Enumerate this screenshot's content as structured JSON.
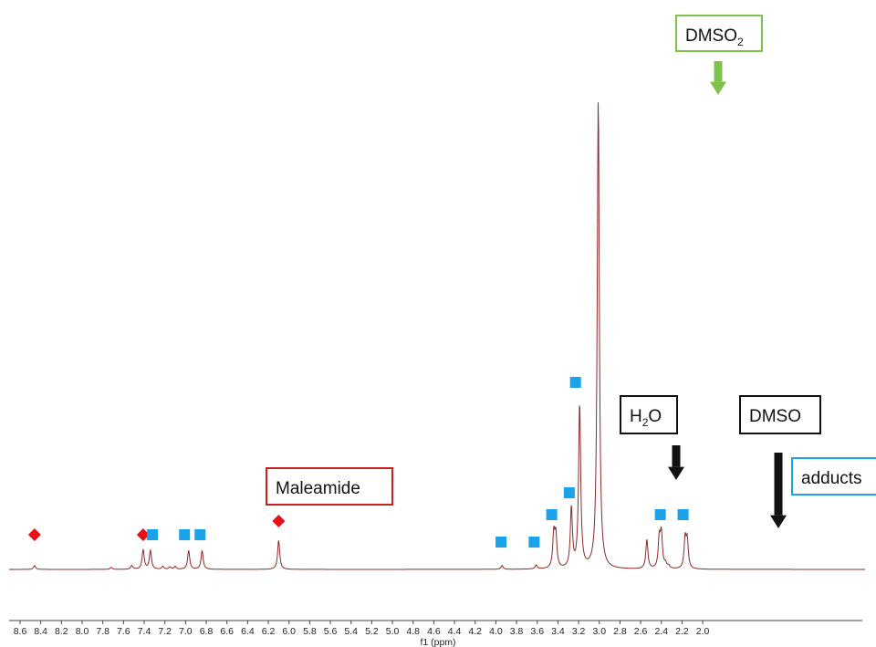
{
  "chart_data": {
    "type": "line",
    "xlabel": "f1 (ppm)",
    "xlim": [
      8.7,
      1.9
    ],
    "x_ticks": [
      "8.6",
      "8.4",
      "8.2",
      "8.0",
      "7.8",
      "7.6",
      "7.4",
      "7.2",
      "7.0",
      "6.8",
      "6.6",
      "6.4",
      "6.2",
      "6.0",
      "5.8",
      "5.6",
      "5.4",
      "5.2",
      "5.0",
      "4.8",
      "4.6",
      "4.4",
      "4.2",
      "4.0",
      "3.8",
      "3.6",
      "3.4",
      "3.2",
      "3.0",
      "2.8",
      "2.6",
      "2.4",
      "2.2",
      "2.0"
    ],
    "peaks": [
      {
        "ppm": 8.46,
        "intensity": 0.008
      },
      {
        "ppm": 7.72,
        "intensity": 0.004
      },
      {
        "ppm": 7.52,
        "intensity": 0.008
      },
      {
        "ppm": 7.41,
        "intensity": 0.042
      },
      {
        "ppm": 7.34,
        "intensity": 0.04
      },
      {
        "ppm": 7.22,
        "intensity": 0.006
      },
      {
        "ppm": 7.15,
        "intensity": 0.005
      },
      {
        "ppm": 7.1,
        "intensity": 0.006
      },
      {
        "ppm": 6.97,
        "intensity": 0.04
      },
      {
        "ppm": 6.84,
        "intensity": 0.04
      },
      {
        "ppm": 6.1,
        "intensity": 0.062
      },
      {
        "ppm": 3.94,
        "intensity": 0.008
      },
      {
        "ppm": 3.61,
        "intensity": 0.008
      },
      {
        "ppm": 3.44,
        "intensity": 0.072
      },
      {
        "ppm": 3.42,
        "intensity": 0.068
      },
      {
        "ppm": 3.27,
        "intensity": 0.128
      },
      {
        "ppm": 3.19,
        "intensity": 0.35
      },
      {
        "ppm": 3.01,
        "intensity": 1.0
      },
      {
        "ppm": 2.54,
        "intensity": 0.062
      },
      {
        "ppm": 2.42,
        "intensity": 0.062
      },
      {
        "ppm": 2.4,
        "intensity": 0.072
      },
      {
        "ppm": 2.36,
        "intensity": 0.01
      },
      {
        "ppm": 2.33,
        "intensity": 0.006
      },
      {
        "ppm": 2.17,
        "intensity": 0.062
      },
      {
        "ppm": 2.15,
        "intensity": 0.058
      }
    ],
    "line_color": "#8b2a2a",
    "annotations": {
      "dmso2": {
        "text_main": "DMSO",
        "text_sub": "2",
        "ppm": 3.01,
        "box_color": "#7dc24a",
        "arrow_color": "#7dc24a"
      },
      "h2o": {
        "text_main": "H",
        "text_sub": "2",
        "text_tail": "O",
        "ppm": 3.41,
        "box_color": "#111111",
        "arrow_color": "#111111"
      },
      "dmso": {
        "text": "DMSO",
        "ppm": 2.54,
        "box_color": "#111111",
        "arrow_color": "#111111"
      },
      "adducts": {
        "text": "adducts",
        "box_color": "#1aa3e8"
      },
      "maleamide": {
        "text": "Maleamide",
        "box_color": "#cc1f1f"
      }
    },
    "markers": {
      "maleamide_diamond": {
        "color": "#e8101a",
        "shape": "diamond",
        "ppm": [
          8.46,
          7.41,
          6.1
        ]
      },
      "adduct_square": {
        "color": "#1aa3e8",
        "shape": "square",
        "ppm": [
          7.32,
          7.01,
          6.86,
          3.95,
          3.63,
          3.46,
          3.29,
          3.23,
          2.41,
          2.19
        ]
      }
    }
  }
}
